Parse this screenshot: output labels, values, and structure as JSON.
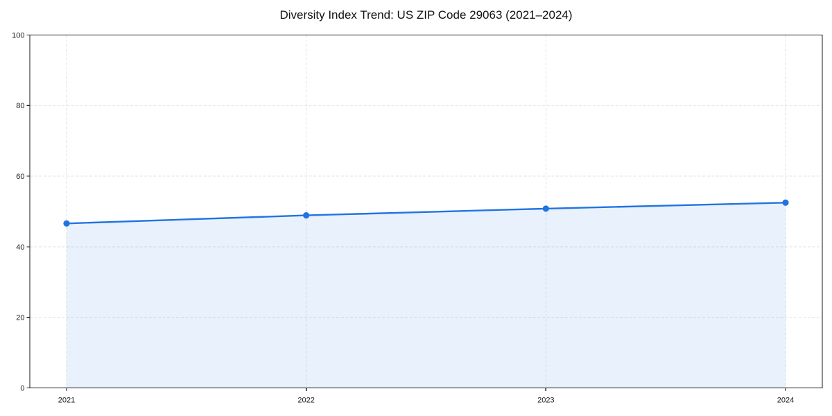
{
  "chart_data": {
    "type": "line",
    "title": "Diversity Index Trend: US ZIP Code 29063 (2021–2024)",
    "categories": [
      "2021",
      "2022",
      "2023",
      "2024"
    ],
    "values": [
      46.6,
      48.9,
      50.8,
      52.5
    ],
    "xlabel": "",
    "ylabel": "",
    "ylim": [
      0,
      100
    ],
    "y_ticks": [
      0,
      20,
      40,
      60,
      80,
      100
    ],
    "grid": true,
    "grid_style": "dashed",
    "legend_position": "none",
    "area_fill": true,
    "marker": "circle",
    "colors": {
      "line": "#2173e2",
      "area_fill": "#e8f1fc",
      "grid": "#e2e2e2",
      "spine": "#1a1a1a",
      "tick_text": "#1a1a1a",
      "title_text": "#111111",
      "background": "#ffffff"
    }
  }
}
